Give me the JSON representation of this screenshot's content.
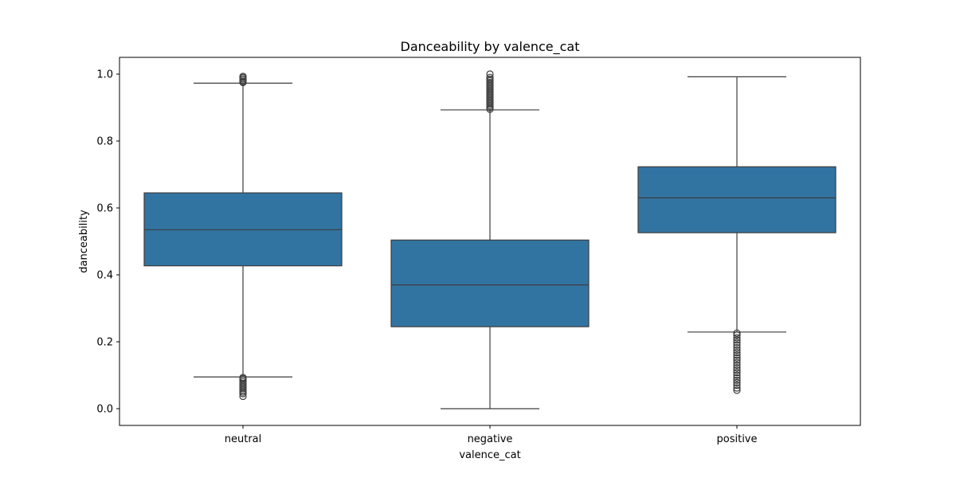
{
  "chart_data": {
    "type": "box",
    "title": "Danceability by valence_cat",
    "xlabel": "valence_cat",
    "ylabel": "danceability",
    "ylim": [
      -0.05,
      1.05
    ],
    "yticks": [
      0.0,
      0.2,
      0.4,
      0.6,
      0.8,
      1.0
    ],
    "ytick_labels": [
      "0.0",
      "0.2",
      "0.4",
      "0.6",
      "0.8",
      "1.0"
    ],
    "grid": false,
    "box_color": "#3274a1",
    "line_color": "#3d3d3d",
    "categories": [
      "neutral",
      "negative",
      "positive"
    ],
    "boxes": [
      {
        "category": "neutral",
        "whisker_low": 0.095,
        "q1": 0.427,
        "median": 0.535,
        "q3": 0.645,
        "whisker_high": 0.973,
        "outliers": [
          0.037,
          0.045,
          0.05,
          0.055,
          0.06,
          0.065,
          0.07,
          0.075,
          0.08,
          0.085,
          0.09,
          0.093,
          0.975,
          0.978,
          0.982,
          0.986,
          0.99,
          0.993
        ]
      },
      {
        "category": "negative",
        "whisker_low": 0.0,
        "q1": 0.245,
        "median": 0.37,
        "q3": 0.504,
        "whisker_high": 0.893,
        "outliers": [
          0.895,
          0.9,
          0.905,
          0.91,
          0.915,
          0.92,
          0.925,
          0.93,
          0.935,
          0.94,
          0.945,
          0.95,
          0.955,
          0.96,
          0.965,
          0.97,
          0.975,
          0.98,
          0.985,
          0.99,
          1.0
        ]
      },
      {
        "category": "positive",
        "whisker_low": 0.229,
        "q1": 0.526,
        "median": 0.63,
        "q3": 0.723,
        "whisker_high": 0.992,
        "outliers": [
          0.055,
          0.062,
          0.07,
          0.078,
          0.085,
          0.092,
          0.1,
          0.108,
          0.115,
          0.122,
          0.13,
          0.138,
          0.145,
          0.152,
          0.16,
          0.168,
          0.175,
          0.182,
          0.19,
          0.198,
          0.205,
          0.212,
          0.22,
          0.226
        ]
      }
    ]
  }
}
